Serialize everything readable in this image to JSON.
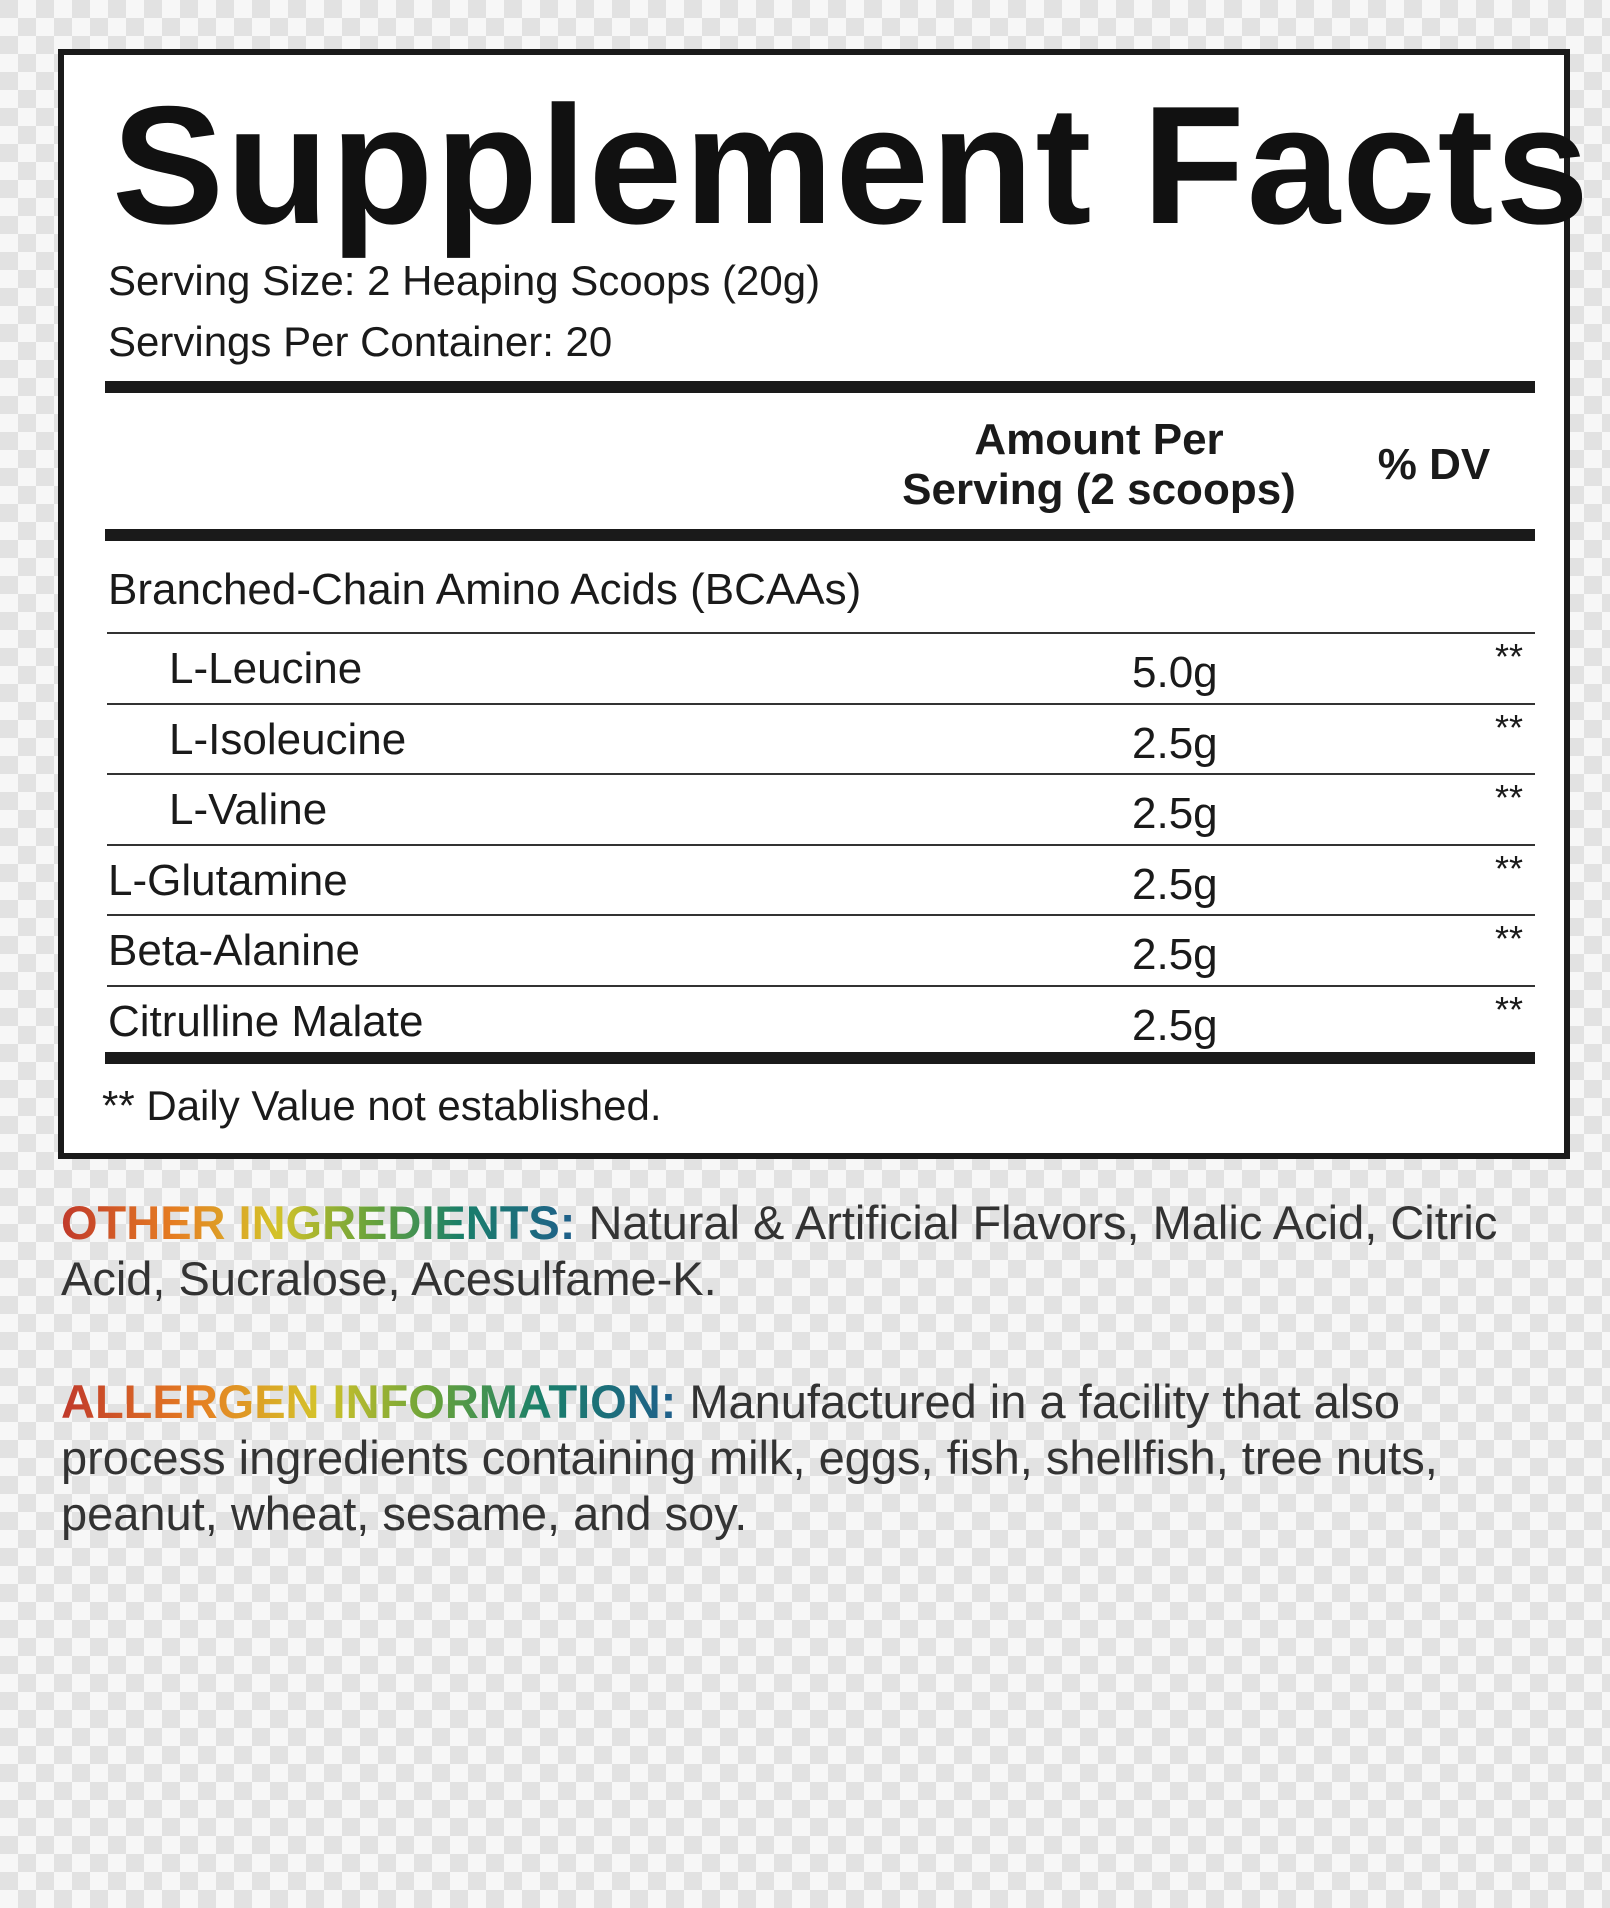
{
  "title": "Supplement Facts",
  "serving_size": "Serving Size: 2 Heaping Scoops (20g)",
  "servings_per_container": "Servings Per Container: 20",
  "header": {
    "amount": [
      "Amount Per",
      "Serving (2 scoops)"
    ],
    "dv": "% DV"
  },
  "group": {
    "label": "Branched-Chain Amino Acids (BCAAs)",
    "rows": [
      [
        "L-Leucine",
        "5.0g",
        "**"
      ],
      [
        "L-Isoleucine",
        "2.5g",
        "**"
      ],
      [
        "L-Valine",
        "2.5g",
        "**"
      ]
    ]
  },
  "rows": [
    [
      "L-Glutamine",
      "2.5g",
      "**"
    ],
    [
      "Beta-Alanine",
      "2.5g",
      "**"
    ],
    [
      "Citrulline Malate",
      "2.5g",
      "**"
    ]
  ],
  "footnote": "** Daily Value not established.",
  "other_ingredients": {
    "label": "OTHER INGREDIENTS:",
    "text": "Natural & Artificial Flavors, Malic Acid, Citric Acid, Sucralose, Acesulfame-K."
  },
  "allergen": {
    "label": "ALLERGEN INFORMATION:",
    "text": "Manufactured in a facility that also process ingredients containing milk, eggs, fish, shellfish, tree nuts, peanut, wheat, sesame, and soy."
  }
}
